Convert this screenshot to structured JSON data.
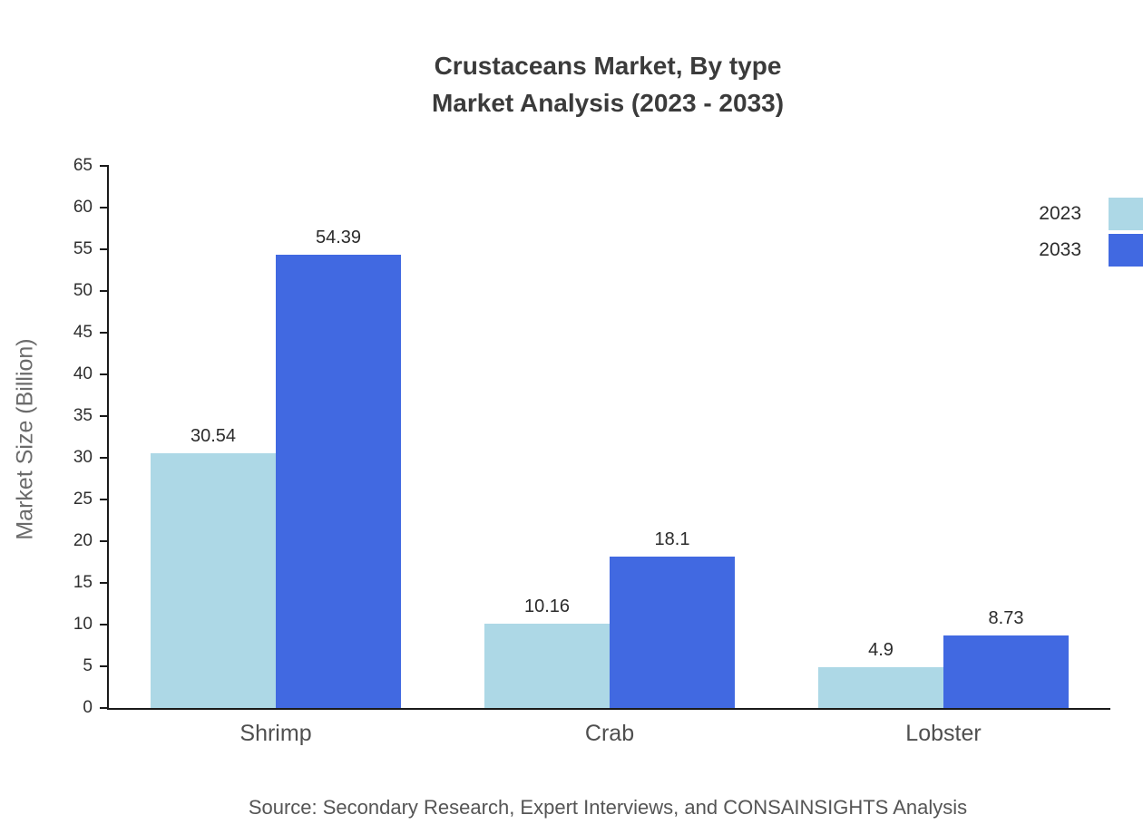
{
  "chart": {
    "title_line1": "Crustaceans Market, By type",
    "title_line2": "Market Analysis (2023 - 2033)",
    "ylabel": "Market Size (Billion)",
    "source": "Source: Secondary Research, Expert Interviews, and CONSAINSIGHTS Analysis"
  },
  "chart_data": {
    "type": "bar",
    "title": "Crustaceans Market, By type Market Analysis (2023 - 2033)",
    "xlabel": "",
    "ylabel": "Market Size (Billion)",
    "categories": [
      "Shrimp",
      "Crab",
      "Lobster"
    ],
    "series": [
      {
        "name": "2023",
        "color": "#ADD8E6",
        "values": [
          30.54,
          10.16,
          4.9
        ],
        "labels": [
          "30.54",
          "10.16",
          "4.9"
        ]
      },
      {
        "name": "2033",
        "color": "#4169E1",
        "values": [
          54.39,
          18.1,
          8.73
        ],
        "labels": [
          "54.39",
          "18.1",
          "8.73"
        ]
      }
    ],
    "ylim": [
      0,
      65
    ],
    "yticks": [
      0,
      5,
      10,
      15,
      20,
      25,
      30,
      35,
      40,
      45,
      50,
      55,
      60,
      65
    ],
    "grid": false,
    "legend_position": "right",
    "value_labels": true
  }
}
